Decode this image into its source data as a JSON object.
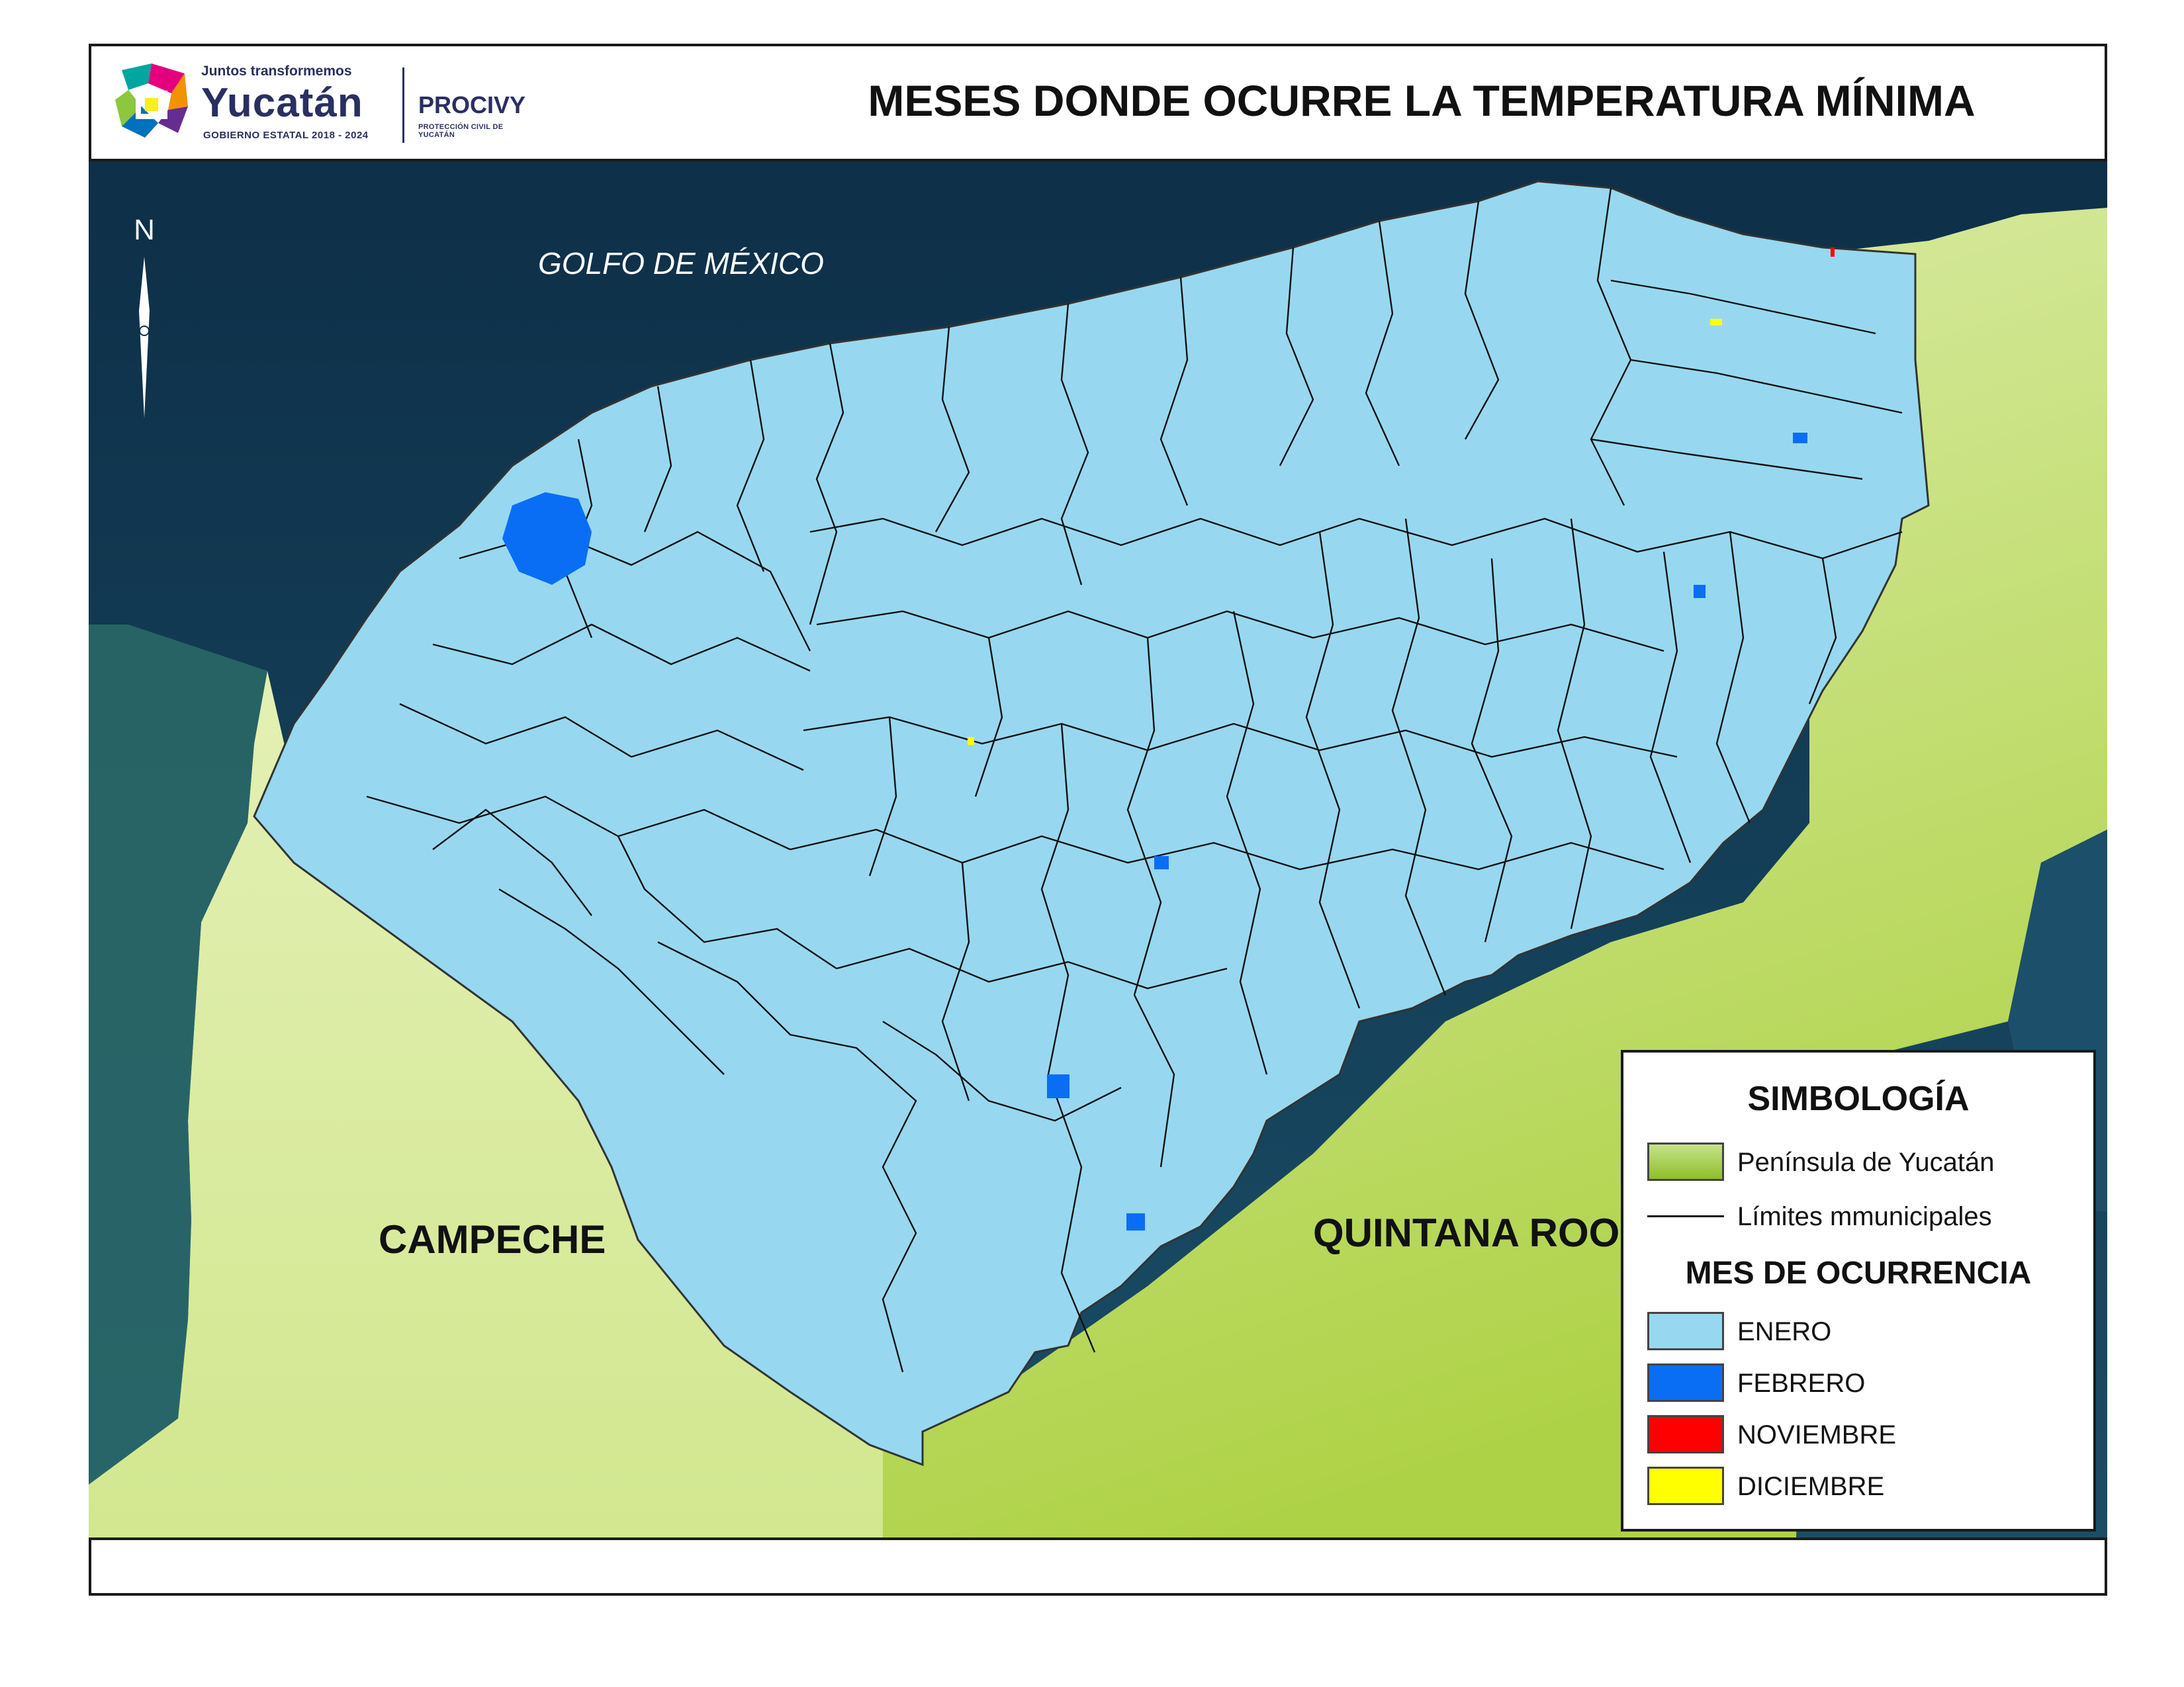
{
  "header": {
    "title": "MESES DONDE OCURRE LA TEMPERATURA MÍNIMA",
    "logo_tagline": "Juntos transformemos",
    "logo_state": "Yucatán",
    "logo_government": "GOBIERNO ESTATAL 2018 - 2024",
    "agency_name": "PROCIVY",
    "agency_full": "PROTECCIÓN CIVIL DE YUCATÁN"
  },
  "map": {
    "north_label": "N",
    "labels": {
      "gulf": "GOLFO DE MÉXICO",
      "campeche": "CAMPECHE",
      "quintana_roo": "QUINTANA ROO"
    }
  },
  "legend": {
    "title": "SIMBOLOGÍA",
    "base_items": [
      {
        "label": "Península de Yucatán",
        "color": "#a9d45a"
      },
      {
        "label": "Límites mmunicipales",
        "color": "#111111"
      }
    ],
    "subtitle": "MES DE OCURRENCIA",
    "month_items": [
      {
        "label": "ENERO",
        "color": "#97d8f0"
      },
      {
        "label": "FEBRERO",
        "color": "#0a6ef5"
      },
      {
        "label": "NOVIEMBRE",
        "color": "#ff0000"
      },
      {
        "label": "DICIEMBRE",
        "color": "#ffff00"
      }
    ]
  },
  "colors": {
    "sea_dark": "#123a56",
    "sea_coast": "#2f6f73",
    "land_light": "#dcebaa",
    "land_green": "#b3d64e",
    "yucatan": "#97d8f0",
    "febrero": "#0a6ef5"
  }
}
